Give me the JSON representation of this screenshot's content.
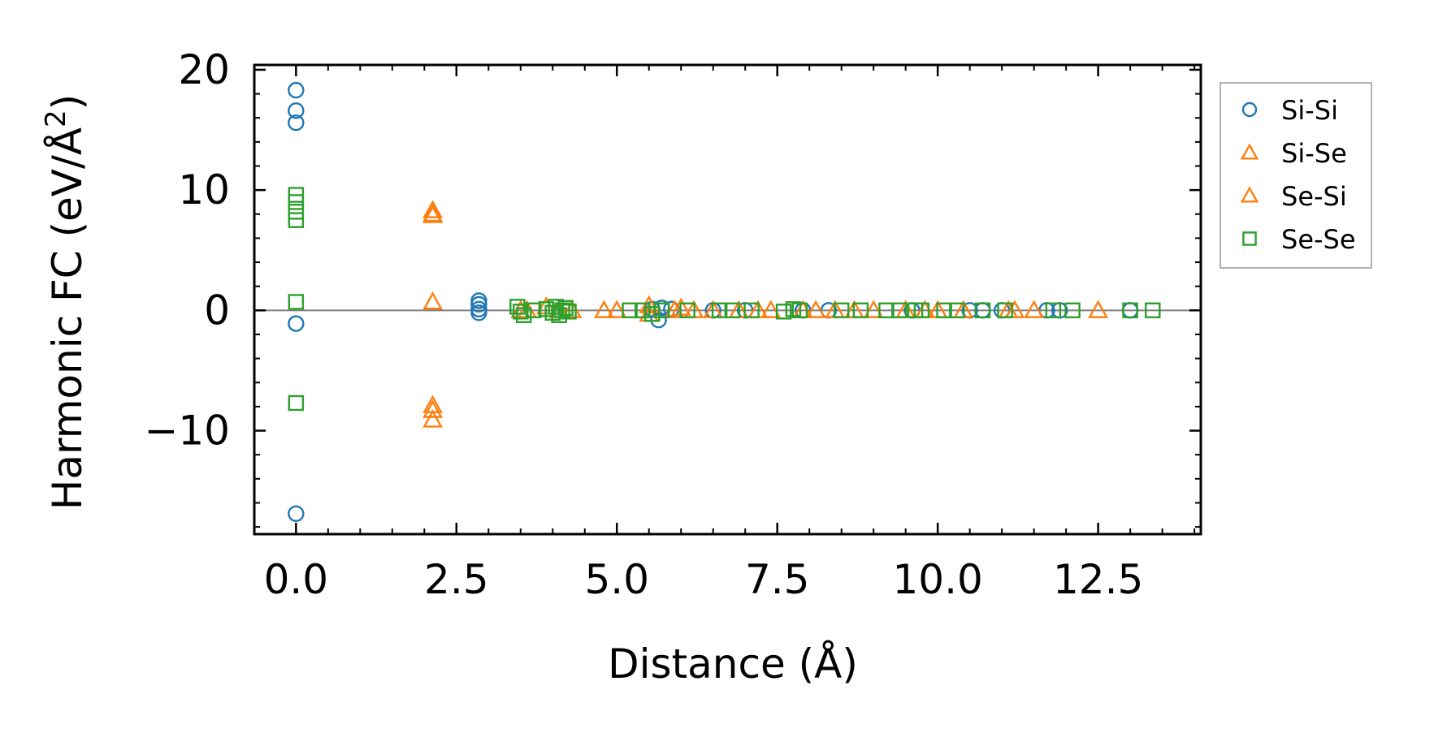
{
  "chart_data": {
    "type": "scatter",
    "title": "",
    "xlabel": "Distance (Å)",
    "ylabel_main": "Harmonic FC (eV/Å",
    "ylabel_sup": "2",
    "ylabel_close": ")",
    "xlim": [
      -0.65,
      14.1
    ],
    "ylim": [
      -18.6,
      20.4
    ],
    "xticks": [
      0.0,
      2.5,
      5.0,
      7.5,
      10.0,
      12.5
    ],
    "xtick_labels": [
      "0.0",
      "2.5",
      "5.0",
      "7.5",
      "10.0",
      "12.5"
    ],
    "yticks": [
      -10,
      0,
      10,
      20
    ],
    "ytick_labels": [
      "−10",
      "0",
      "10",
      "20"
    ],
    "zero_line": 0,
    "legend_position": "outside-right",
    "series": [
      {
        "name": "Si-Si",
        "marker": "circle",
        "color": "#1f77b4",
        "points": [
          [
            0,
            18.3
          ],
          [
            0,
            16.6
          ],
          [
            0,
            15.6
          ],
          [
            0,
            -1.1
          ],
          [
            0,
            -16.9
          ],
          [
            2.85,
            0.8
          ],
          [
            2.85,
            0.5
          ],
          [
            2.85,
            0.1
          ],
          [
            2.85,
            -0.2
          ],
          [
            5.55,
            0.1
          ],
          [
            5.65,
            -0.8
          ],
          [
            5.7,
            0.2
          ],
          [
            5.85,
            0.1
          ],
          [
            6.5,
            0.0
          ],
          [
            7.0,
            0.0
          ],
          [
            7.9,
            0.0
          ],
          [
            8.3,
            0.0
          ],
          [
            9.6,
            0.0
          ],
          [
            10.5,
            0.0
          ],
          [
            10.7,
            0.0
          ],
          [
            11.0,
            0.0
          ],
          [
            11.7,
            0.0
          ],
          [
            11.9,
            0.0
          ],
          [
            13.0,
            0.0
          ]
        ]
      },
      {
        "name": "Si-Se",
        "marker": "triangle",
        "color": "#ff7f0e",
        "points": [
          [
            2.13,
            8.3
          ],
          [
            2.13,
            8.0
          ],
          [
            2.13,
            0.7
          ],
          [
            2.13,
            -7.9
          ],
          [
            2.13,
            -8.3
          ],
          [
            2.13,
            -9.1
          ],
          [
            3.6,
            0.0
          ],
          [
            3.9,
            0.3
          ],
          [
            4.1,
            0.0
          ],
          [
            4.8,
            0.0
          ],
          [
            5.0,
            0.0
          ],
          [
            5.5,
            0.4
          ],
          [
            5.5,
            -0.3
          ],
          [
            5.9,
            0.0
          ],
          [
            6.0,
            0.2
          ],
          [
            6.5,
            0.0
          ],
          [
            6.9,
            0.0
          ],
          [
            7.4,
            0.0
          ],
          [
            7.9,
            0.0
          ],
          [
            8.1,
            0.0
          ],
          [
            8.7,
            0.0
          ],
          [
            9.0,
            0.0
          ],
          [
            9.5,
            0.0
          ],
          [
            10.0,
            0.0
          ],
          [
            10.4,
            0.0
          ],
          [
            11.2,
            0.0
          ],
          [
            11.5,
            0.0
          ],
          [
            12.5,
            0.0
          ]
        ]
      },
      {
        "name": "Se-Si",
        "marker": "triangle",
        "color": "#ff7f0e",
        "points": [
          [
            2.13,
            7.9
          ],
          [
            3.5,
            0.0
          ],
          [
            4.3,
            0.0
          ],
          [
            6.2,
            0.0
          ],
          [
            7.2,
            0.0
          ],
          [
            8.4,
            0.0
          ],
          [
            9.8,
            0.0
          ],
          [
            11.1,
            0.0
          ]
        ]
      },
      {
        "name": "Se-Se",
        "marker": "square",
        "color": "#2ca02c",
        "points": [
          [
            0,
            9.6
          ],
          [
            0,
            9.0
          ],
          [
            0,
            8.2
          ],
          [
            0,
            7.5
          ],
          [
            0,
            0.7
          ],
          [
            0,
            -7.7
          ],
          [
            3.45,
            0.3
          ],
          [
            3.5,
            -0.1
          ],
          [
            3.55,
            -0.4
          ],
          [
            3.7,
            0.0
          ],
          [
            3.9,
            0.1
          ],
          [
            4.0,
            -0.2
          ],
          [
            4.05,
            0.3
          ],
          [
            4.1,
            -0.4
          ],
          [
            4.15,
            0.0
          ],
          [
            4.2,
            0.2
          ],
          [
            4.25,
            -0.1
          ],
          [
            5.2,
            0.0
          ],
          [
            5.4,
            0.0
          ],
          [
            5.55,
            -0.3
          ],
          [
            5.7,
            0.0
          ],
          [
            6.1,
            0.0
          ],
          [
            6.6,
            0.0
          ],
          [
            6.8,
            0.0
          ],
          [
            7.1,
            0.0
          ],
          [
            7.6,
            -0.1
          ],
          [
            7.75,
            0.1
          ],
          [
            7.85,
            0.0
          ],
          [
            8.5,
            0.0
          ],
          [
            8.8,
            0.0
          ],
          [
            9.2,
            0.0
          ],
          [
            9.4,
            0.0
          ],
          [
            9.65,
            0.0
          ],
          [
            9.75,
            0.0
          ],
          [
            10.1,
            0.0
          ],
          [
            10.3,
            0.0
          ],
          [
            10.7,
            0.0
          ],
          [
            11.05,
            0.0
          ],
          [
            11.8,
            0.0
          ],
          [
            12.1,
            0.0
          ],
          [
            13.0,
            0.0
          ],
          [
            13.35,
            0.0
          ]
        ]
      }
    ]
  }
}
